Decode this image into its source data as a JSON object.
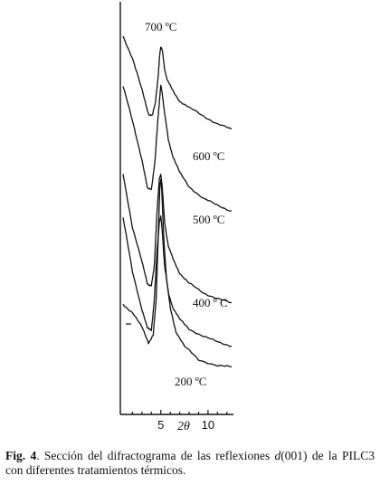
{
  "chart_data": {
    "type": "line",
    "title": "",
    "xlabel": "2θ",
    "ylabel": "",
    "xlim": [
      1.0,
      12.5
    ],
    "x_ticks": [
      5,
      10
    ],
    "x_tick_labels": [
      "5",
      "10"
    ],
    "y_ticks": [],
    "grid": false,
    "legend": "none",
    "series": [
      {
        "name": "700 ºC",
        "peak_x": 5.0,
        "x": [
          1.0,
          2.0,
          3.0,
          3.7,
          4.1,
          4.4,
          4.7,
          4.9,
          5.0,
          5.15,
          5.4,
          5.7,
          6.2,
          7.0,
          8.0,
          9.5,
          11.0,
          12.5
        ],
        "y": [
          1.0,
          0.78,
          0.46,
          0.22,
          0.2,
          0.32,
          0.58,
          0.82,
          0.9,
          0.86,
          0.67,
          0.56,
          0.46,
          0.35,
          0.28,
          0.2,
          0.12,
          0.06
        ]
      },
      {
        "name": "600 ºC",
        "peak_x": 5.0,
        "x": [
          1.0,
          2.0,
          3.0,
          3.6,
          4.0,
          4.4,
          4.7,
          4.9,
          5.0,
          5.15,
          5.4,
          5.8,
          6.3,
          7.0,
          8.0,
          9.5,
          11.0,
          12.5
        ],
        "y": [
          1.0,
          0.74,
          0.46,
          0.24,
          0.24,
          0.46,
          0.76,
          0.93,
          1.0,
          0.95,
          0.8,
          0.6,
          0.48,
          0.36,
          0.26,
          0.17,
          0.12,
          0.08
        ]
      },
      {
        "name": "500 ºC",
        "peak_x": 5.0,
        "x": [
          1.0,
          2.0,
          3.0,
          3.6,
          4.0,
          4.3,
          4.6,
          4.85,
          5.0,
          5.15,
          5.4,
          5.8,
          6.3,
          7.0,
          8.0,
          9.5,
          11.0,
          12.5
        ],
        "y": [
          1.0,
          0.6,
          0.34,
          0.18,
          0.16,
          0.3,
          0.72,
          0.96,
          1.0,
          0.9,
          0.64,
          0.46,
          0.36,
          0.26,
          0.18,
          0.11,
          0.07,
          0.03
        ]
      },
      {
        "name": "400 º C",
        "peak_x": 5.0,
        "x": [
          1.0,
          2.0,
          3.0,
          3.6,
          4.0,
          4.3,
          4.6,
          4.85,
          5.0,
          5.15,
          5.4,
          5.8,
          6.3,
          7.0,
          8.0,
          9.5,
          11.0,
          12.5
        ],
        "y": [
          1.0,
          0.58,
          0.3,
          0.15,
          0.14,
          0.36,
          0.74,
          0.97,
          1.0,
          0.9,
          0.63,
          0.42,
          0.31,
          0.22,
          0.15,
          0.09,
          0.05,
          0.02
        ]
      },
      {
        "name": "200 ºC",
        "peak_x": 5.0,
        "x": [
          1.0,
          2.0,
          3.0,
          3.7,
          4.2,
          4.5,
          4.75,
          4.9,
          5.0,
          5.1,
          5.3,
          5.6,
          6.0,
          6.6,
          7.5,
          9.0,
          11.0,
          12.5
        ],
        "y": [
          0.34,
          0.3,
          0.22,
          0.14,
          0.18,
          0.36,
          0.74,
          0.96,
          1.0,
          0.94,
          0.7,
          0.48,
          0.32,
          0.2,
          0.12,
          0.05,
          0.02,
          0.01
        ]
      }
    ]
  },
  "caption": {
    "label": "Fig. 4",
    "text_before": ". Sección del difractograma de las reflexiones ",
    "formula_d": "d",
    "text_after": "(001) de la PILC3 con diferentes tratamientos térmicos."
  }
}
